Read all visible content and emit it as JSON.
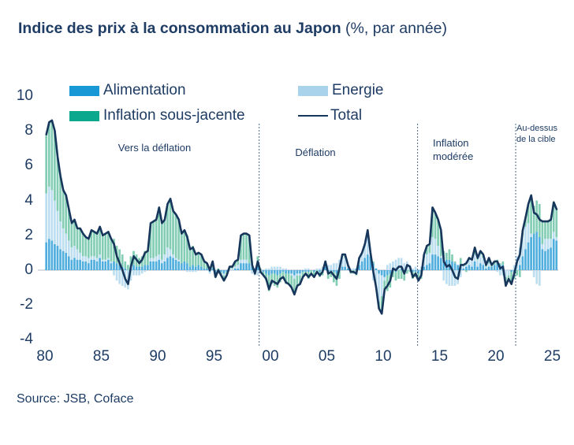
{
  "title": {
    "bold": "Indice des prix à la consommation au Japon",
    "normal": " (%, par année)"
  },
  "legend": {
    "items": [
      {
        "label": "Alimentation",
        "color": "#1898D5",
        "type": "bar"
      },
      {
        "label": "Energie",
        "color": "#A9D3EA",
        "type": "bar"
      },
      {
        "label": "Inflation sous-jacente",
        "color": "#0BA88D",
        "type": "bar"
      },
      {
        "label": "Total",
        "color": "#17365C",
        "type": "line"
      }
    ]
  },
  "annotations": {
    "zone1": "Vers la déflation",
    "zone2": "Déflation",
    "zone3": "Inflation modérée",
    "zone4": "Au-dessus de la cible"
  },
  "source": "Source: JSB, Coface",
  "colors": {
    "text_navy": "#1E3C64",
    "total_line": "#17365C",
    "divider": "#4A6B8C",
    "zero_line": "#CBD1D6",
    "background": "#FFFFFF"
  },
  "chart_data": {
    "type": "bar",
    "subtype": "stacked-contribution-bars-with-total-line",
    "x_start": 1980,
    "x_step": 0.25,
    "x_end": 2025.25,
    "ylim": [
      -4,
      10
    ],
    "y_ticks": [
      10,
      8,
      6,
      4,
      2,
      0,
      -2,
      -4
    ],
    "x_tick_years": [
      1980,
      1985,
      1990,
      1995,
      2000,
      2005,
      2010,
      2015,
      2020,
      2025
    ],
    "x_tick_labels": [
      "80",
      "85",
      "90",
      "95",
      "00",
      "05",
      "10",
      "15",
      "20",
      "25"
    ],
    "grid": false,
    "legend_position": "top",
    "dividers_years": [
      1999.0,
      2013.05,
      2021.75
    ],
    "series": [
      {
        "name": "Alimentation",
        "color": "#1898D5",
        "bar_color": "#4FAEDD",
        "values": [
          1.6,
          1.8,
          1.7,
          1.5,
          1.4,
          1.2,
          1.1,
          1.0,
          0.8,
          0.6,
          0.7,
          0.6,
          0.6,
          0.5,
          0.5,
          0.4,
          0.6,
          0.6,
          0.5,
          0.7,
          0.5,
          0.5,
          0.6,
          0.4,
          0.5,
          0.4,
          0.3,
          0.2,
          0.1,
          0.0,
          0.2,
          0.3,
          0.2,
          0.2,
          0.2,
          0.3,
          0.3,
          0.5,
          0.5,
          0.5,
          0.6,
          0.4,
          0.5,
          0.7,
          0.8,
          0.7,
          0.6,
          0.5,
          0.4,
          0.5,
          0.4,
          0.2,
          0.3,
          0.2,
          0.3,
          0.2,
          0.1,
          0.1,
          -0.1,
          0.1,
          -0.2,
          -0.1,
          -0.1,
          -0.2,
          -0.1,
          0.0,
          0.0,
          0.1,
          0.1,
          0.4,
          0.4,
          0.4,
          0.4,
          0.2,
          0.1,
          0.3,
          0.0,
          -0.1,
          -0.2,
          -0.3,
          -0.2,
          -0.2,
          -0.3,
          -0.2,
          -0.1,
          -0.2,
          -0.2,
          -0.2,
          -0.3,
          -0.2,
          -0.2,
          -0.1,
          -0.1,
          -0.1,
          0.0,
          -0.1,
          0.0,
          -0.1,
          0.0,
          0.2,
          -0.1,
          -0.1,
          -0.1,
          -0.2,
          0.1,
          0.2,
          0.2,
          0.1,
          0.0,
          0.0,
          0.1,
          0.3,
          0.5,
          0.7,
          0.9,
          0.8,
          0.4,
          0.1,
          -0.2,
          -0.3,
          -0.4,
          -0.3,
          -0.2,
          0.0,
          -0.1,
          0.0,
          0.1,
          0.0,
          0.0,
          0.0,
          -0.1,
          -0.1,
          -0.2,
          -0.1,
          0.2,
          0.3,
          0.4,
          0.9,
          0.9,
          0.8,
          0.7,
          0.6,
          0.6,
          0.6,
          0.5,
          0.4,
          0.3,
          0.2,
          0.1,
          0.2,
          0.3,
          0.2,
          0.5,
          0.2,
          0.4,
          0.3,
          0.1,
          0.2,
          0.2,
          0.3,
          0.4,
          0.3,
          0.3,
          0.0,
          0.0,
          -0.1,
          -0.1,
          0.0,
          0.3,
          0.8,
          1.2,
          1.6,
          1.9,
          2.1,
          2.2,
          1.9,
          1.2,
          1.1,
          1.2,
          1.3,
          1.8,
          1.7
        ]
      },
      {
        "name": "Energie",
        "color": "#A9D3EA",
        "bar_color": "#BCDEF0",
        "values": [
          2.8,
          3.0,
          2.9,
          2.5,
          2.0,
          1.6,
          1.3,
          1.1,
          0.9,
          0.7,
          0.7,
          0.6,
          0.4,
          0.3,
          0.3,
          0.3,
          0.2,
          0.2,
          0.2,
          0.2,
          0.1,
          0.1,
          0.1,
          0.1,
          -0.3,
          -0.6,
          -0.8,
          -0.9,
          -1.0,
          -1.1,
          -0.6,
          -0.3,
          -0.3,
          -0.3,
          -0.2,
          -0.1,
          0.0,
          0.2,
          0.2,
          0.3,
          0.3,
          0.2,
          0.4,
          0.6,
          0.4,
          0.2,
          0.1,
          0.1,
          0.0,
          0.0,
          -0.1,
          -0.1,
          -0.1,
          -0.1,
          0.0,
          0.0,
          0.0,
          0.0,
          -0.1,
          0.0,
          0.0,
          0.0,
          0.0,
          -0.1,
          0.0,
          0.1,
          0.1,
          0.1,
          0.2,
          0.2,
          0.2,
          0.2,
          0.0,
          -0.2,
          -0.3,
          -0.3,
          -0.2,
          0.0,
          0.1,
          0.1,
          0.2,
          0.2,
          0.2,
          0.2,
          0.1,
          0.1,
          0.0,
          -0.1,
          -0.2,
          -0.1,
          -0.1,
          0.0,
          0.1,
          0.1,
          0.0,
          0.0,
          0.1,
          0.1,
          0.2,
          0.3,
          0.3,
          0.3,
          0.4,
          0.4,
          0.5,
          0.6,
          0.5,
          0.2,
          0.1,
          0.1,
          0.0,
          0.4,
          0.5,
          0.8,
          1.1,
          0.2,
          -0.6,
          -1.1,
          -1.6,
          -1.2,
          -0.2,
          0.3,
          0.4,
          0.5,
          0.6,
          0.7,
          0.6,
          0.4,
          0.5,
          0.3,
          0.1,
          0.2,
          0.0,
          0.2,
          0.5,
          0.6,
          0.6,
          1.0,
          0.9,
          0.6,
          0.1,
          -0.6,
          -0.8,
          -0.9,
          -0.9,
          -0.9,
          -0.8,
          -0.4,
          0.2,
          0.3,
          0.3,
          0.4,
          0.4,
          0.4,
          0.5,
          0.4,
          0.1,
          0.2,
          0.0,
          0.0,
          -0.1,
          -0.3,
          -0.3,
          -0.4,
          -0.3,
          0.0,
          0.3,
          0.8,
          1.0,
          1.2,
          1.3,
          1.1,
          0.2,
          -0.4,
          -0.8,
          -0.9,
          0.3,
          0.7,
          0.6,
          0.5,
          0.4,
          0.2
        ]
      },
      {
        "name": "Inflation sous-jacente",
        "color": "#0BA88D",
        "bar_color": "#82CDB4",
        "values": [
          3.4,
          3.7,
          4.0,
          4.0,
          3.1,
          2.6,
          2.2,
          2.2,
          1.8,
          1.4,
          1.5,
          1.2,
          1.4,
          1.3,
          1.1,
          1.1,
          1.5,
          1.4,
          1.4,
          1.6,
          1.4,
          1.5,
          1.5,
          1.3,
          1.3,
          1.0,
          0.9,
          0.7,
          0.4,
          0.3,
          0.6,
          0.8,
          0.7,
          0.5,
          0.6,
          0.8,
          0.8,
          2.0,
          2.1,
          2.1,
          2.7,
          2.1,
          2.0,
          2.5,
          2.9,
          2.5,
          2.5,
          2.3,
          1.7,
          1.8,
          1.6,
          1.1,
          1.1,
          0.8,
          0.7,
          0.7,
          0.4,
          0.3,
          0.2,
          0.4,
          -0.2,
          0.1,
          -0.2,
          -0.3,
          -0.2,
          0.1,
          0.1,
          0.3,
          0.3,
          1.4,
          1.5,
          1.5,
          1.6,
          0.3,
          0.0,
          0.5,
          0.1,
          -0.2,
          -0.4,
          -0.9,
          -0.6,
          -0.7,
          -0.7,
          -0.5,
          -0.4,
          -0.6,
          -0.6,
          -0.7,
          -0.9,
          -0.6,
          -0.5,
          -0.3,
          -0.2,
          -0.4,
          -0.2,
          -0.3,
          -0.2,
          -0.3,
          -0.3,
          0.0,
          -0.4,
          -0.3,
          -0.6,
          -0.7,
          -0.5,
          0.1,
          0.2,
          0.0,
          -0.2,
          -0.2,
          -0.3,
          0.0,
          0.0,
          0.0,
          0.3,
          0.0,
          0.1,
          0.0,
          -0.4,
          -1.0,
          -0.5,
          -0.9,
          -0.8,
          -0.4,
          -0.5,
          -0.5,
          -0.5,
          -0.6,
          -0.2,
          -0.1,
          -0.4,
          -0.3,
          -0.4,
          -0.4,
          0.2,
          0.5,
          0.5,
          1.7,
          1.5,
          1.5,
          1.5,
          0.5,
          0.4,
          0.6,
          0.4,
          0.1,
          0.0,
          0.5,
          0.0,
          -0.1,
          0.1,
          0.0,
          0.4,
          0.1,
          0.2,
          0.2,
          0.1,
          0.3,
          0.1,
          0.2,
          0.2,
          0.1,
          0.2,
          -0.5,
          -0.2,
          -0.7,
          -0.4,
          -0.3,
          -0.4,
          0.3,
          0.5,
          1.1,
          2.2,
          1.6,
          1.8,
          1.9,
          1.3,
          1.0,
          1.0,
          1.1,
          1.7,
          1.6
        ]
      }
    ],
    "total": {
      "name": "Total",
      "color": "#17365C",
      "values": [
        7.8,
        8.5,
        8.6,
        8.0,
        6.5,
        5.4,
        4.6,
        4.3,
        3.5,
        2.7,
        2.9,
        2.4,
        2.4,
        2.1,
        1.9,
        1.8,
        2.3,
        2.2,
        2.1,
        2.5,
        2.0,
        2.1,
        2.2,
        1.8,
        1.5,
        0.8,
        0.4,
        0.0,
        -0.5,
        -0.8,
        0.2,
        0.8,
        0.6,
        0.4,
        0.6,
        1.0,
        1.1,
        2.7,
        2.8,
        2.9,
        3.6,
        2.7,
        2.9,
        3.8,
        4.1,
        3.4,
        3.2,
        2.9,
        2.1,
        2.3,
        1.9,
        1.2,
        1.3,
        0.9,
        1.0,
        0.9,
        0.5,
        0.4,
        0.0,
        0.5,
        -0.4,
        0.0,
        -0.3,
        -0.6,
        -0.3,
        0.2,
        0.2,
        0.5,
        0.6,
        2.0,
        2.1,
        2.1,
        2.0,
        0.3,
        -0.2,
        0.5,
        -0.1,
        -0.3,
        -0.5,
        -1.1,
        -0.6,
        -0.7,
        -0.8,
        -0.5,
        -0.4,
        -0.7,
        -0.8,
        -1.0,
        -1.4,
        -0.9,
        -0.8,
        -0.4,
        -0.2,
        -0.4,
        -0.2,
        -0.4,
        -0.1,
        -0.3,
        -0.1,
        0.5,
        -0.2,
        -0.1,
        -0.3,
        -0.5,
        0.1,
        0.9,
        0.9,
        0.3,
        -0.1,
        -0.1,
        -0.2,
        0.7,
        1.0,
        1.5,
        2.3,
        1.0,
        -0.1,
        -1.0,
        -2.2,
        -2.5,
        -1.1,
        -0.9,
        -0.6,
        0.1,
        0.0,
        0.2,
        0.2,
        -0.2,
        0.3,
        0.2,
        -0.4,
        -0.2,
        -0.6,
        -0.3,
        0.9,
        1.4,
        1.5,
        3.6,
        3.3,
        2.9,
        2.3,
        0.5,
        0.2,
        0.3,
        0.0,
        -0.4,
        -0.5,
        0.3,
        0.3,
        0.4,
        0.7,
        0.6,
        1.3,
        0.7,
        1.1,
        0.9,
        0.3,
        0.7,
        0.3,
        0.5,
        0.5,
        0.1,
        0.2,
        -0.9,
        -0.5,
        -0.8,
        -0.2,
        0.5,
        0.9,
        2.3,
        3.0,
        3.8,
        4.3,
        3.3,
        3.2,
        2.9,
        2.8,
        2.8,
        2.8,
        2.9,
        3.9,
        3.5
      ]
    }
  }
}
